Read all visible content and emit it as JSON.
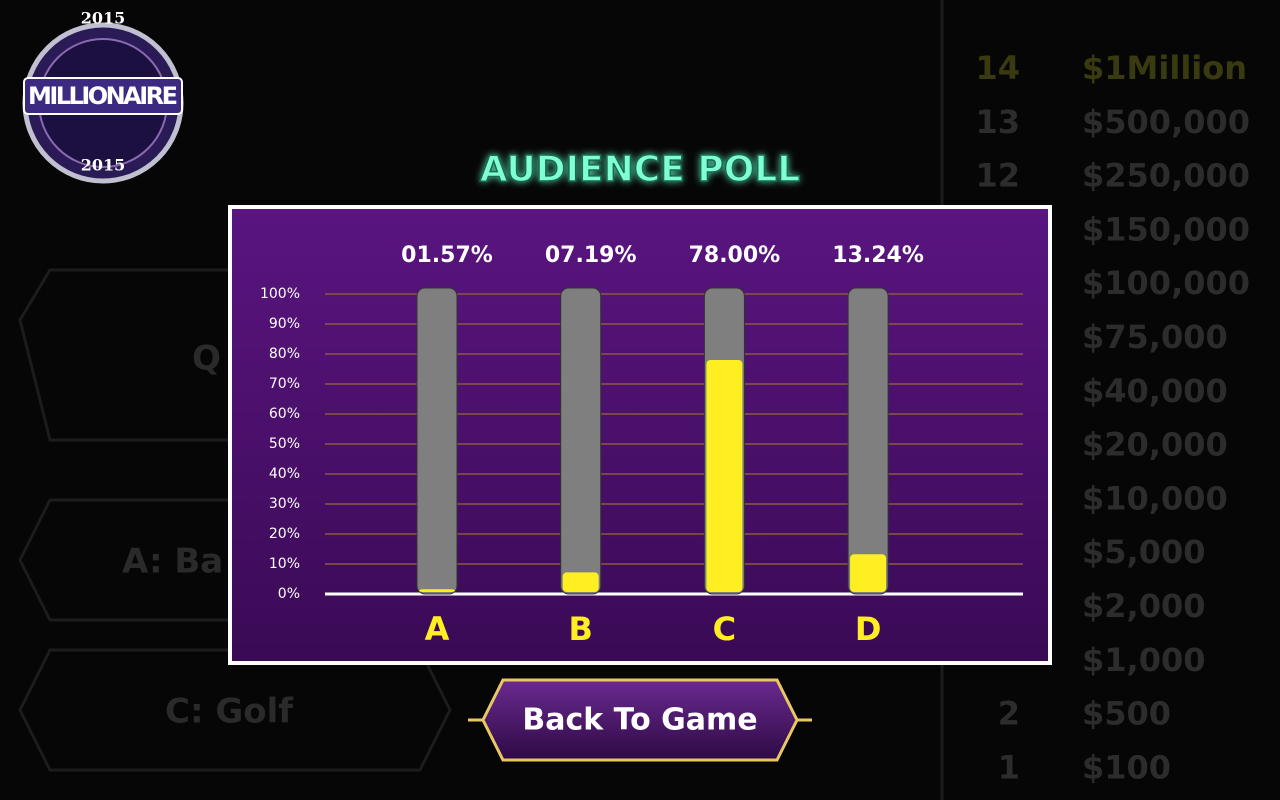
{
  "logo": {
    "year_top": "2015",
    "name": "MILLIONAIRE",
    "year_bottom": "2015"
  },
  "background": {
    "question": "Q",
    "answers": [
      "A: Ba",
      "C: Golf"
    ],
    "ladder": [
      {
        "level": "14",
        "prize": "$1Million"
      },
      {
        "level": "13",
        "prize": "$500,000"
      },
      {
        "level": "12",
        "prize": "$250,000"
      },
      {
        "level": null,
        "prize": "$150,000"
      },
      {
        "level": null,
        "prize": "$100,000"
      },
      {
        "level": null,
        "prize": "$75,000"
      },
      {
        "level": null,
        "prize": "$40,000"
      },
      {
        "level": null,
        "prize": "$20,000"
      },
      {
        "level": null,
        "prize": "$10,000"
      },
      {
        "level": null,
        "prize": "$5,000"
      },
      {
        "level": null,
        "prize": "$2,000"
      },
      {
        "level": null,
        "prize": "$1,000"
      },
      {
        "level": "2",
        "prize": "$500"
      },
      {
        "level": "1",
        "prize": "$100"
      }
    ]
  },
  "chart_data": {
    "type": "bar",
    "title": "AUDIENCE POLL",
    "categories": [
      "A",
      "B",
      "C",
      "D"
    ],
    "values": [
      1.57,
      7.19,
      78,
      13.24
    ],
    "value_labels": [
      "01.57%",
      "07.19%",
      "78.00%",
      "13.24%"
    ],
    "color": "#ffee22",
    "track_color": "#7f7f7f",
    "ylim": [
      0,
      100
    ],
    "yticks": [
      {
        "value": 0,
        "label": "0%"
      },
      {
        "value": 10,
        "label": "10%"
      },
      {
        "value": 20,
        "label": "20%"
      },
      {
        "value": 30,
        "label": "30%"
      },
      {
        "value": 40,
        "label": "40%"
      },
      {
        "value": 50,
        "label": "50%"
      },
      {
        "value": 60,
        "label": "60%"
      },
      {
        "value": 70,
        "label": "70%"
      },
      {
        "value": 80,
        "label": "80%"
      },
      {
        "value": 90,
        "label": "90%"
      },
      {
        "value": 100,
        "label": "100%"
      }
    ],
    "grid": true
  },
  "button": {
    "label": "Back To Game"
  }
}
